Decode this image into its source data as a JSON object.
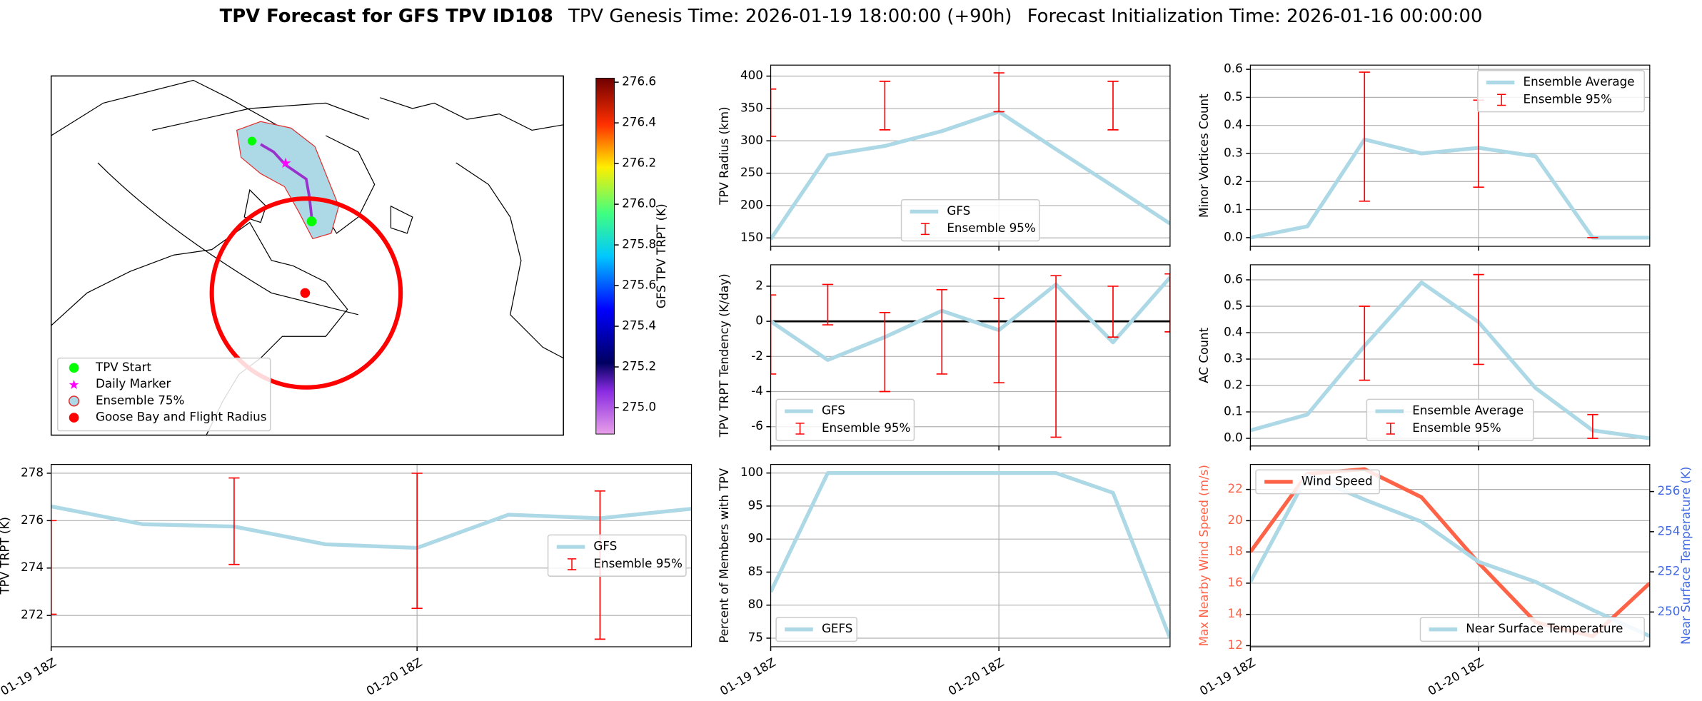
{
  "chart_data": [
    {
      "type": "map",
      "title": "TPV Forecast for GFS TPV ID108",
      "subtitle": "TPV Genesis Time: 2026-01-19 18:00:00 (+90h)",
      "subtitle2": "Forecast Initialization Time: 2026-01-16 00:00:00",
      "legend": [
        {
          "label": "TPV Start",
          "color": "#00ff00",
          "marker": "circle"
        },
        {
          "label": "Daily Marker",
          "color": "#ff00ff",
          "marker": "star"
        },
        {
          "label": "Ensemble 75%",
          "color": "#add8e6",
          "marker": "ring"
        },
        {
          "label": "Goose Bay and Flight Radius",
          "color": "#ff0000",
          "marker": "circle"
        }
      ],
      "colorbar": {
        "label": "GFS TPV TRPT (K)",
        "lim": [
          274.87,
          276.62
        ],
        "ticks": [
          {
            "value": 275.0,
            "label": "275.0"
          },
          275.2,
          275.4,
          275.6,
          275.8,
          {
            "value": 276.0,
            "label": "276.0"
          },
          276.2,
          276.4,
          276.6
        ]
      }
    },
    {
      "type": "line",
      "ylabel": "TPV Radius (km)",
      "ylim": [
        137,
        417
      ],
      "yticks": [
        150,
        200,
        250,
        300,
        350,
        400
      ],
      "grid": true,
      "legend": "lower center",
      "series": [
        {
          "name": "GFS",
          "color": "#add8e6",
          "values": [
            148,
            278,
            292,
            315,
            345,
            287,
            230,
            172
          ]
        },
        {
          "name": "Ensemble 95%",
          "color": "#ff0000",
          "type": "errorbar",
          "lower": [
            307,
            null,
            317,
            null,
            345,
            null,
            317,
            null
          ],
          "upper": [
            380,
            null,
            392,
            null,
            405,
            null,
            392,
            null
          ]
        }
      ]
    },
    {
      "type": "line",
      "ylabel": "Minor Vortices Count",
      "ylim": [
        -0.031,
        0.615
      ],
      "yticks": [
        {
          "value": 0,
          "label": "0.0"
        },
        0.1,
        0.2,
        0.3,
        0.4,
        0.5,
        0.6
      ],
      "grid": true,
      "legend": "upper right",
      "series": [
        {
          "name": "Ensemble Average",
          "color": "#add8e6",
          "values": [
            0.0,
            0.04,
            0.35,
            0.3,
            0.32,
            0.29,
            0.0,
            0.0
          ]
        },
        {
          "name": "Ensemble 95%",
          "color": "#ff0000",
          "type": "errorbar",
          "lower": [
            null,
            null,
            0.13,
            null,
            0.18,
            null,
            0,
            null
          ],
          "upper": [
            null,
            null,
            0.59,
            null,
            0.49,
            null,
            0,
            null
          ]
        }
      ]
    },
    {
      "type": "line",
      "ylabel": "TPV TRPT Tendency (K/day)",
      "ylim": [
        -7.1,
        3.22
      ],
      "yticks": [
        -6,
        -4,
        -2,
        0,
        2
      ],
      "grid": true,
      "hline": 0,
      "legend": "lower left",
      "series": [
        {
          "name": "GFS",
          "color": "#add8e6",
          "values": [
            0,
            -2.2,
            -0.9,
            0.6,
            -0.5,
            2.1,
            -1.2,
            2.5
          ]
        },
        {
          "name": "Ensemble 95%",
          "color": "#ff0000",
          "type": "errorbar",
          "lower": [
            -3.0,
            -0.2,
            -4.0,
            -3.0,
            -3.5,
            -6.6,
            -0.9,
            -0.6
          ],
          "upper": [
            1.5,
            2.1,
            0.5,
            1.8,
            1.3,
            2.6,
            2.0,
            2.7
          ]
        }
      ]
    },
    {
      "type": "line",
      "ylabel": "AC Count",
      "ylim": [
        -0.029,
        0.657
      ],
      "yticks": [
        {
          "value": 0,
          "label": "0.0"
        },
        0.1,
        0.2,
        0.3,
        0.4,
        0.5,
        0.6
      ],
      "grid": true,
      "legend": "lower center",
      "series": [
        {
          "name": "Ensemble Average",
          "color": "#add8e6",
          "values": [
            0.03,
            0.09,
            0.35,
            0.59,
            0.44,
            0.19,
            0.03,
            0.0
          ]
        },
        {
          "name": "Ensemble 95%",
          "color": "#ff0000",
          "type": "errorbar",
          "lower": [
            null,
            null,
            0.22,
            null,
            0.28,
            null,
            0,
            null
          ],
          "upper": [
            null,
            null,
            0.5,
            null,
            0.62,
            null,
            0.09,
            null
          ]
        }
      ]
    },
    {
      "type": "line",
      "ylabel": "TPV TRPT (K)",
      "categories": [
        "01-19 18Z",
        null,
        null,
        null,
        "01-20 18Z",
        null,
        null,
        null
      ],
      "ylim": [
        270.68,
        278.37
      ],
      "yticks": [
        272,
        274,
        276,
        278
      ],
      "grid": true,
      "legend": "center right",
      "series": [
        {
          "name": "GFS",
          "color": "#add8e6",
          "values": [
            276.6,
            275.85,
            275.75,
            275.0,
            274.85,
            276.25,
            276.1,
            276.5
          ]
        },
        {
          "name": "Ensemble 95%",
          "color": "#ff0000",
          "type": "errorbar",
          "lower": [
            272.05,
            null,
            274.15,
            null,
            272.3,
            null,
            271.0,
            null
          ],
          "upper": [
            276.0,
            null,
            277.8,
            null,
            278.0,
            null,
            277.25,
            null
          ]
        }
      ]
    },
    {
      "type": "line",
      "ylabel": "Percent of Members with TPV",
      "categories": [
        "01-19 18Z",
        null,
        null,
        null,
        "01-20 18Z",
        null,
        null,
        null
      ],
      "ylim": [
        73.7,
        101.3
      ],
      "yticks": [
        75,
        80,
        85,
        90,
        95,
        100
      ],
      "grid": true,
      "legend": "lower left",
      "series": [
        {
          "name": "GEFS",
          "color": "#add8e6",
          "values": [
            82,
            100,
            100,
            100,
            100,
            100,
            97,
            75
          ]
        }
      ]
    },
    {
      "type": "line",
      "ylabel": "Max Nearby Wind Speed (m/s)",
      "ylabel_color": "#ff6347",
      "y2label": "Near Surface Temperature (K)",
      "y2label_color": "#4169e1",
      "categories": [
        "01-19 18Z",
        null,
        null,
        null,
        "01-20 18Z",
        null,
        null,
        null
      ],
      "ylim": [
        11.93,
        23.6
      ],
      "yticks": [
        12,
        14,
        16,
        18,
        20,
        22
      ],
      "y2lim": [
        248.27,
        257.35
      ],
      "y2ticks": [
        250,
        252,
        254,
        256
      ],
      "grid": true,
      "legend": "upper left",
      "legend_y2": "lower right",
      "series": [
        {
          "name": "Wind Speed",
          "color": "#ff6347",
          "values": [
            18,
            23,
            23.3,
            21.5,
            17.3,
            13.5,
            12.6,
            16
          ]
        },
        {
          "name": "Near Surface Temperature",
          "color": "#add8e6",
          "axis": "y2",
          "values": [
            251.5,
            256.8,
            255.6,
            254.5,
            252.5,
            251.5,
            250.1,
            248.8
          ]
        }
      ]
    }
  ]
}
